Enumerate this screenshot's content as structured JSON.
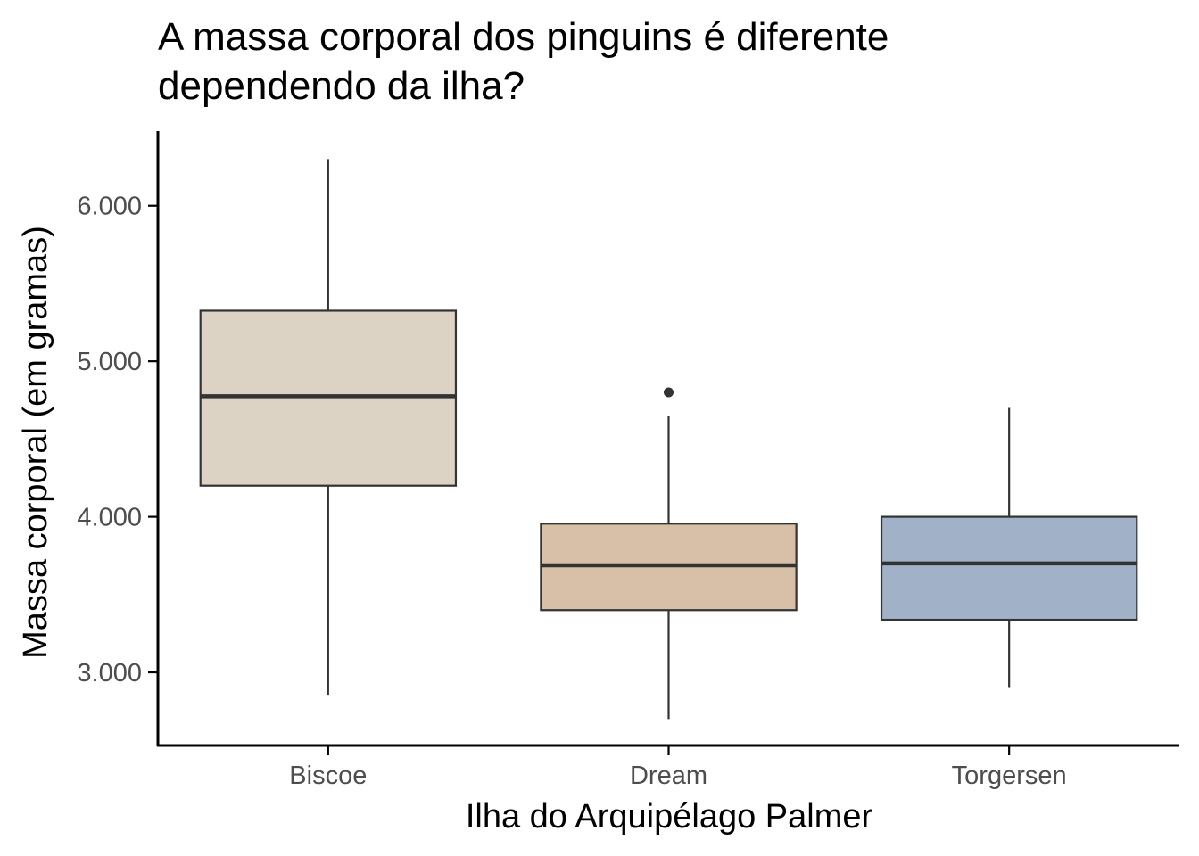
{
  "chart_data": {
    "type": "boxplot",
    "title_lines": [
      "A massa corporal dos pinguins é diferente",
      "dependendo da ilha?"
    ],
    "xlabel": "Ilha do Arquipélago Palmer",
    "ylabel": "Massa corporal (em gramas)",
    "ylim": [
      2530,
      6480
    ],
    "y_ticks": [
      3000,
      4000,
      5000,
      6000
    ],
    "y_tick_labels": [
      "3.000",
      "4.000",
      "5.000",
      "6.000"
    ],
    "grid": false,
    "legend": "none",
    "categories": [
      "Biscoe",
      "Dream",
      "Torgersen"
    ],
    "boxes": [
      {
        "category": "Biscoe",
        "min": 2850,
        "q1": 4200,
        "median": 4775,
        "q3": 5325,
        "max": 6300,
        "outliers": [],
        "fill": "#ddd3c4"
      },
      {
        "category": "Dream",
        "min": 2700,
        "q1": 3400,
        "median": 3688,
        "q3": 3956,
        "max": 4650,
        "outliers": [
          4800
        ],
        "fill": "#d8bfa7"
      },
      {
        "category": "Torgersen",
        "min": 2900,
        "q1": 3338,
        "median": 3700,
        "q3": 4000,
        "max": 4700,
        "outliers": [],
        "fill": "#a0b1c8"
      }
    ],
    "colors": {
      "box_stroke": "#333333",
      "axis": "#000000",
      "tick_text": "#4d4d4d"
    }
  }
}
